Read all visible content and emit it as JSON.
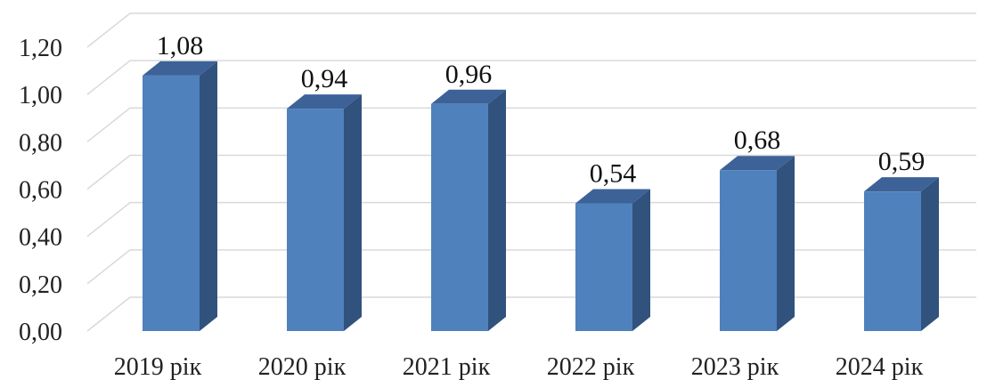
{
  "chart_data": {
    "type": "bar",
    "style": "3d-column",
    "title": "",
    "xlabel": "",
    "ylabel": "",
    "categories": [
      "2019 рік",
      "2020 рік",
      "2021 рік",
      "2022 рік",
      "2023 рік",
      "2024 рік"
    ],
    "series": [
      {
        "values": [
          1.08,
          0.94,
          0.96,
          0.54,
          0.68,
          0.59
        ],
        "color": "#4F81BD"
      }
    ],
    "data_labels": [
      "1,08",
      "0,94",
      "0,96",
      "0,54",
      "0,68",
      "0,59"
    ],
    "y_ticks": [
      "0,00",
      "0,20",
      "0,40",
      "0,60",
      "0,80",
      "1,00",
      "1,20"
    ],
    "ylim": [
      0,
      1.2
    ],
    "grid": true,
    "legend": "none"
  }
}
